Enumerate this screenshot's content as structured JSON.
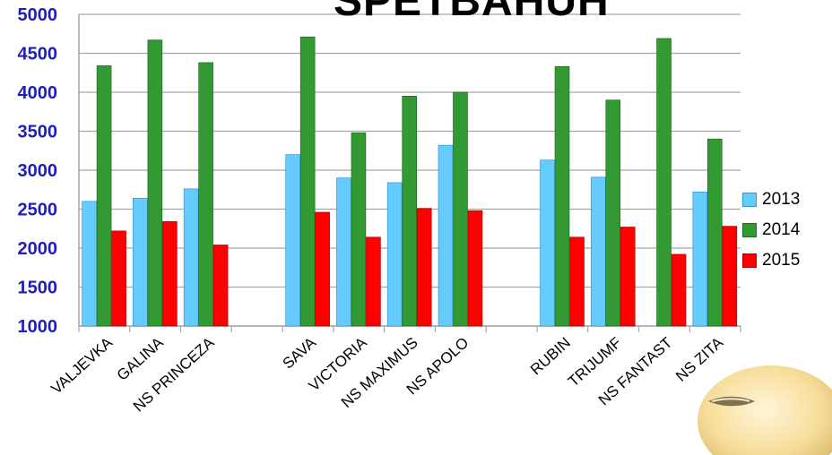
{
  "chart_data": {
    "type": "bar",
    "title": "SPETBAHUH",
    "xlabel": "",
    "ylabel": "",
    "ylim": [
      1000,
      5000
    ],
    "y_ticks": [
      "1000",
      "1500",
      "2000",
      "2500",
      "3000",
      "3500",
      "4000",
      "4500",
      "5000"
    ],
    "grid": true,
    "legend_position": "right",
    "categories": [
      "VALJEVKA",
      "GALINA",
      "NS PRINCEZA",
      "",
      "SAVA",
      "VICTORIA",
      "NS MAXIMUS",
      "NS APOLO",
      "",
      "RUBIN",
      "TRIJUMF",
      "NS FANTAST",
      "NS ZITA"
    ],
    "series": [
      {
        "name": "2013",
        "color": "#66ccff",
        "values": [
          2600,
          2640,
          2760,
          null,
          3200,
          2900,
          2840,
          3320,
          null,
          3130,
          2910,
          null,
          2720
        ]
      },
      {
        "name": "2014",
        "color": "#339933",
        "values": [
          4340,
          4670,
          4380,
          null,
          4710,
          3480,
          3950,
          4000,
          null,
          4330,
          3900,
          4690,
          3400
        ]
      },
      {
        "name": "2015",
        "color": "#ff0000",
        "values": [
          2220,
          2340,
          2040,
          null,
          2460,
          2140,
          2510,
          2480,
          null,
          2140,
          2270,
          1920,
          2280
        ]
      }
    ],
    "axis_color": "#a6a6a6",
    "tick_label_color": "#1f1fb8"
  },
  "decoration": {
    "seed_icon": "soybean-seed-icon"
  }
}
